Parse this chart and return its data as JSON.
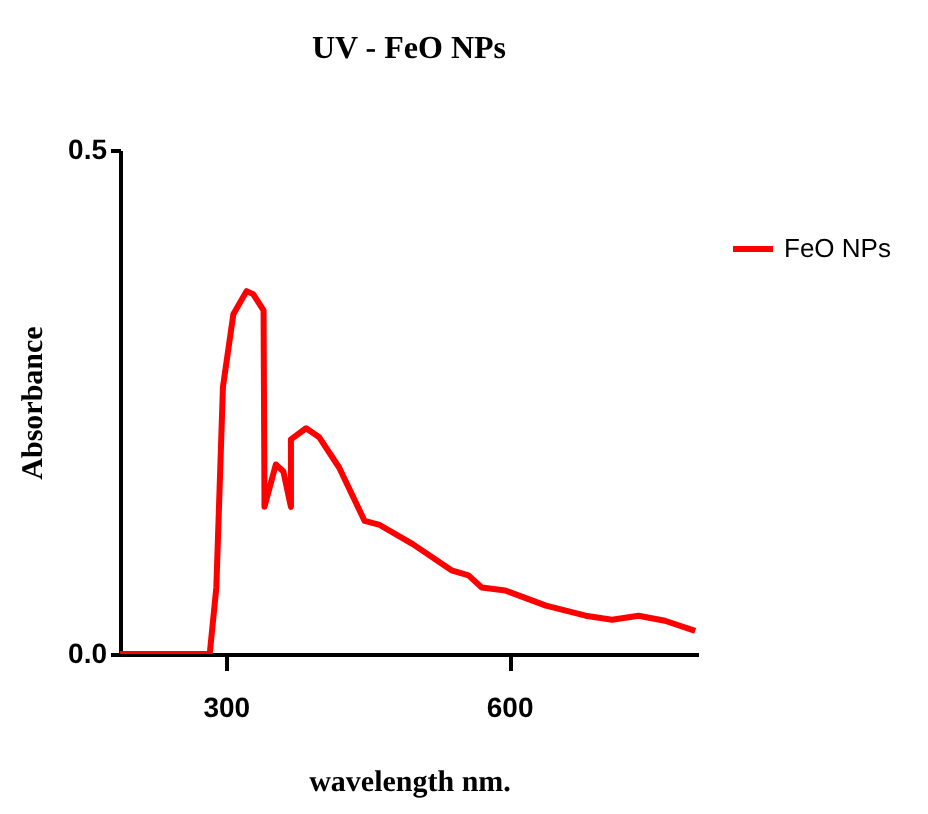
{
  "chart_data": {
    "type": "line",
    "title": "UV - FeO NPs",
    "xlabel": "wavelength nm.",
    "ylabel": "Absorbance",
    "x": [
      188,
      283,
      290,
      297,
      308,
      322,
      329,
      340,
      341,
      353,
      361,
      369,
      369,
      385,
      399,
      420,
      447,
      463,
      498,
      539,
      557,
      571,
      596,
      639,
      681,
      709,
      737,
      765,
      797
    ],
    "series": [
      {
        "name": "FeO NPs",
        "color": "#ff0000",
        "values": [
          0,
          0,
          0.066,
          0.265,
          0.337,
          0.36,
          0.357,
          0.341,
          0.146,
          0.188,
          0.181,
          0.146,
          0.213,
          0.224,
          0.215,
          0.185,
          0.132,
          0.128,
          0.109,
          0.083,
          0.078,
          0.066,
          0.063,
          0.048,
          0.038,
          0.034,
          0.038,
          0.033,
          0.023
        ]
      }
    ],
    "xlim": [
      188,
      800
    ],
    "xticks": [
      300,
      600
    ],
    "ylim": [
      0,
      0.5
    ],
    "yticks": [
      {
        "value": 0,
        "label": "0.0"
      },
      {
        "value": 0.5,
        "label": "0.5"
      }
    ],
    "grid": false,
    "legend": "right",
    "marker": "none",
    "line_style": "solid"
  }
}
